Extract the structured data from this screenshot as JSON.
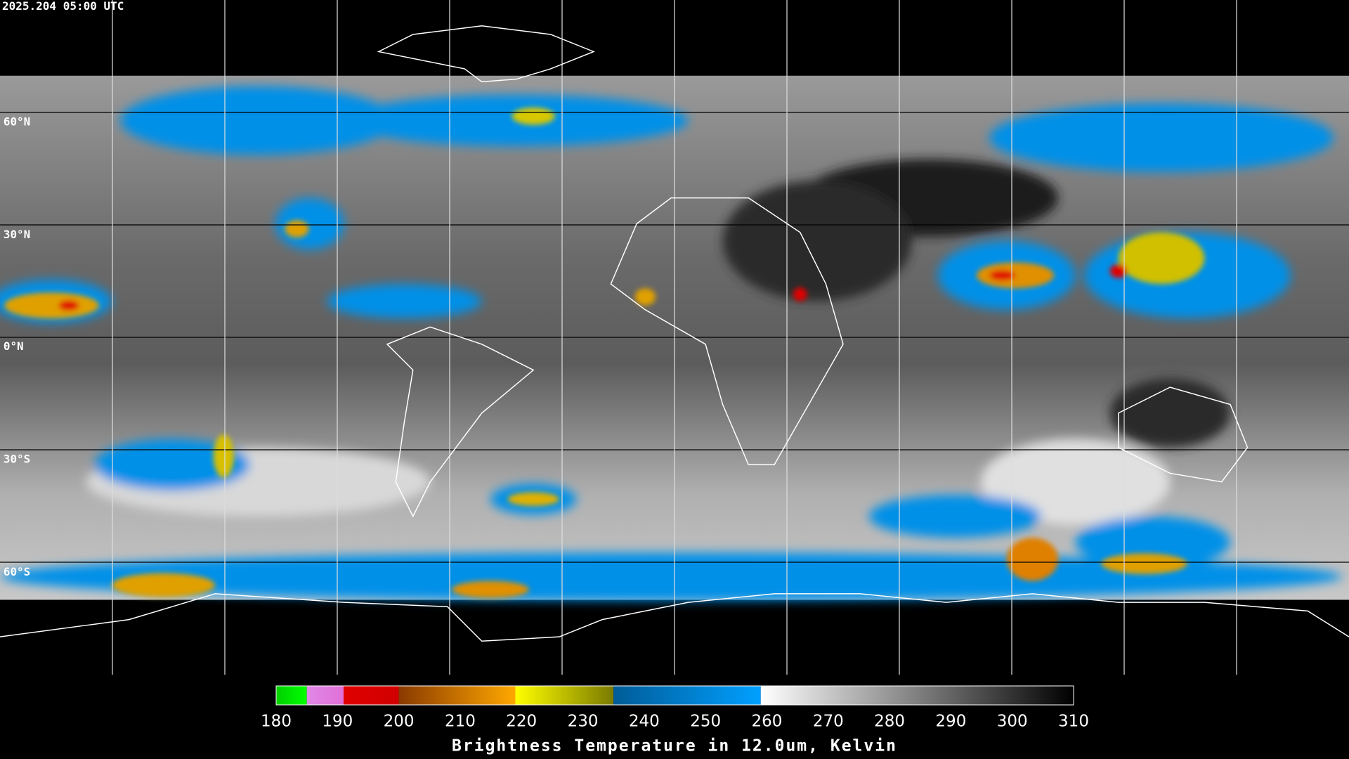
{
  "header": {
    "timestamp": "2025.204 05:00 UTC"
  },
  "map": {
    "lat_labels": [
      "60°N",
      "30°N",
      "0°N",
      "30°S",
      "60°S"
    ]
  },
  "colorbar": {
    "range": [
      180,
      310
    ],
    "ticks": [
      180,
      190,
      200,
      210,
      220,
      230,
      240,
      250,
      260,
      270,
      280,
      290,
      300,
      310
    ],
    "segments": [
      {
        "from": 180,
        "to": 185,
        "colors": [
          "#00d000",
          "#00ff00"
        ]
      },
      {
        "from": 185,
        "to": 191,
        "colors": [
          "#e088e8",
          "#e070d8"
        ]
      },
      {
        "from": 191,
        "to": 200,
        "colors": [
          "#e00000",
          "#d00000"
        ]
      },
      {
        "from": 200,
        "to": 219,
        "colors": [
          "#8a3a00",
          "#ffa800"
        ]
      },
      {
        "from": 219,
        "to": 235,
        "colors": [
          "#ffff00",
          "#7a7a00"
        ]
      },
      {
        "from": 235,
        "to": 259,
        "colors": [
          "#005c98",
          "#00a0ff"
        ]
      },
      {
        "from": 259,
        "to": 310,
        "colors": [
          "#ffffff",
          "#000000"
        ]
      }
    ],
    "label": "Brightness Temperature in 12.0um, Kelvin"
  }
}
